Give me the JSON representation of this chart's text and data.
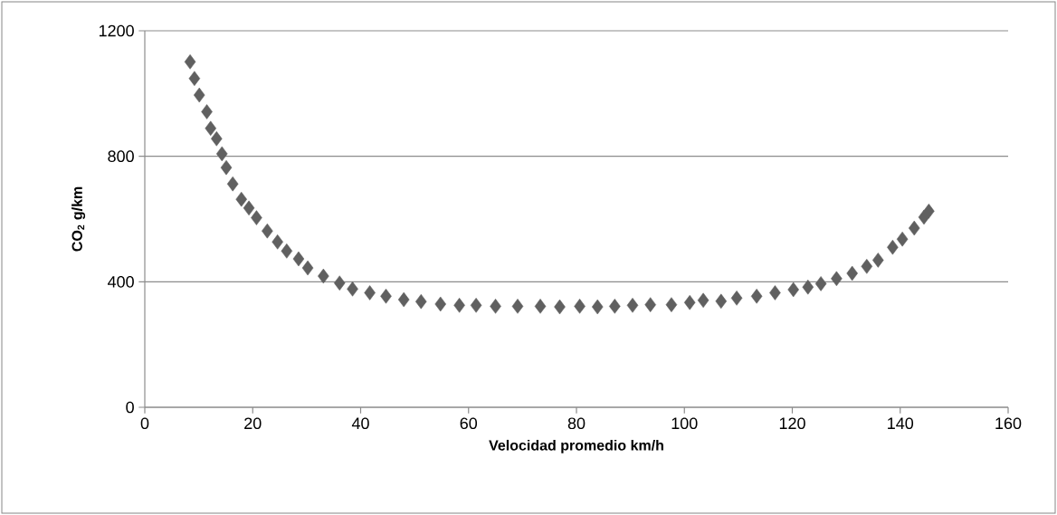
{
  "chart_data": {
    "type": "scatter",
    "xlabel": "Velocidad promedio km/h",
    "ylabel": "CO$_{2}$ g/km",
    "x": [
      8.4,
      9.2,
      10.1,
      11.5,
      12.2,
      13.3,
      14.3,
      15.1,
      16.3,
      17.9,
      19.3,
      20.7,
      22.7,
      24.6,
      26.3,
      28.5,
      30.2,
      33.1,
      36.1,
      38.5,
      41.7,
      44.7,
      48.0,
      51.2,
      54.8,
      58.3,
      61.4,
      65.0,
      69.1,
      73.3,
      76.9,
      80.6,
      83.9,
      87.1,
      90.4,
      93.7,
      97.6,
      101.0,
      103.5,
      106.8,
      109.7,
      113.4,
      116.8,
      120.2,
      122.9,
      125.3,
      128.2,
      131.1,
      133.8,
      135.9,
      138.6,
      140.4,
      142.6,
      144.4,
      145.3
    ],
    "values": [
      1101,
      1048,
      995,
      942,
      889,
      856,
      808,
      764,
      712,
      663,
      635,
      604,
      562,
      527,
      498,
      473,
      444,
      418,
      396,
      377,
      365,
      354,
      343,
      337,
      329,
      325,
      325,
      322,
      322,
      322,
      320,
      322,
      320,
      322,
      325,
      327,
      327,
      334,
      341,
      338,
      348,
      354,
      365,
      375,
      383,
      394,
      410,
      427,
      449,
      469,
      510,
      536,
      571,
      606,
      625
    ],
    "color": "#606060",
    "marker": "diamond",
    "grid": "y",
    "xlim": [
      0,
      160
    ],
    "ylim": [
      0,
      1200
    ],
    "xticks": [
      0,
      20,
      40,
      60,
      80,
      100,
      120,
      140,
      160
    ],
    "yticks": [
      0,
      400,
      800,
      1200
    ]
  }
}
